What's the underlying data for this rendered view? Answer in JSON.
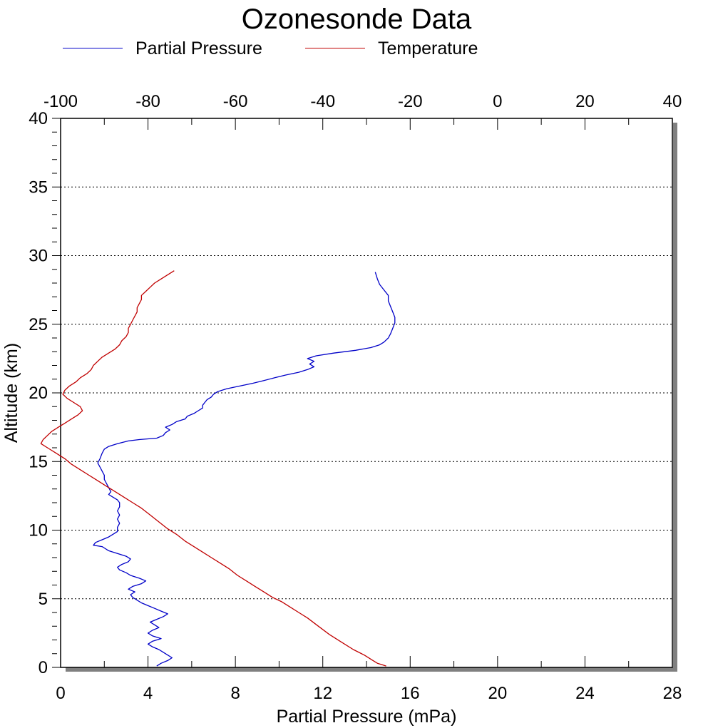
{
  "chart_data": {
    "type": "line",
    "title": "Ozonesonde Data",
    "legend": {
      "placement": "top",
      "entries": [
        {
          "label": "Partial Pressure",
          "color": "#0000c8"
        },
        {
          "label": "Temperature",
          "color": "#c00000"
        }
      ]
    },
    "ylabel": "Altitude (km)",
    "xlabel": "Partial Pressure (mPa)",
    "ylim": [
      0,
      40
    ],
    "y_ticks": [
      0,
      5,
      10,
      15,
      20,
      25,
      30,
      35,
      40
    ],
    "x_bottom": {
      "lim": [
        0,
        28
      ],
      "ticks": [
        0,
        4,
        8,
        12,
        16,
        20,
        24,
        28
      ]
    },
    "x_top": {
      "lim": [
        -100,
        40
      ],
      "ticks": [
        -100,
        -80,
        -60,
        -40,
        -20,
        0,
        20,
        40
      ]
    },
    "grid": {
      "y": true,
      "x": false,
      "style": "dotted"
    },
    "series": [
      {
        "name": "Partial Pressure",
        "axis": "bottom",
        "color": "#0000c8",
        "points": [
          [
            4.4,
            0.1
          ],
          [
            4.6,
            0.3
          ],
          [
            4.9,
            0.5
          ],
          [
            5.1,
            0.7
          ],
          [
            4.9,
            0.9
          ],
          [
            4.7,
            1.1
          ],
          [
            4.5,
            1.3
          ],
          [
            4.2,
            1.5
          ],
          [
            4.0,
            1.7
          ],
          [
            4.2,
            1.9
          ],
          [
            4.6,
            2.1
          ],
          [
            4.2,
            2.3
          ],
          [
            4.0,
            2.5
          ],
          [
            4.2,
            2.7
          ],
          [
            4.5,
            2.9
          ],
          [
            4.3,
            3.1
          ],
          [
            4.1,
            3.3
          ],
          [
            4.4,
            3.5
          ],
          [
            4.7,
            3.7
          ],
          [
            4.9,
            3.9
          ],
          [
            4.6,
            4.1
          ],
          [
            4.3,
            4.3
          ],
          [
            4.0,
            4.5
          ],
          [
            3.7,
            4.7
          ],
          [
            3.5,
            4.9
          ],
          [
            3.3,
            5.1
          ],
          [
            3.2,
            5.3
          ],
          [
            3.4,
            5.5
          ],
          [
            3.1,
            5.7
          ],
          [
            3.3,
            5.9
          ],
          [
            3.7,
            6.1
          ],
          [
            3.9,
            6.3
          ],
          [
            3.6,
            6.5
          ],
          [
            3.2,
            6.7
          ],
          [
            3.0,
            6.9
          ],
          [
            2.7,
            7.1
          ],
          [
            2.6,
            7.3
          ],
          [
            2.8,
            7.5
          ],
          [
            3.1,
            7.7
          ],
          [
            3.2,
            7.9
          ],
          [
            3.0,
            8.1
          ],
          [
            2.6,
            8.3
          ],
          [
            2.2,
            8.5
          ],
          [
            2.0,
            8.7
          ],
          [
            1.9,
            8.8
          ],
          [
            1.5,
            8.9
          ],
          [
            1.6,
            9.1
          ],
          [
            1.9,
            9.3
          ],
          [
            2.2,
            9.5
          ],
          [
            2.4,
            9.7
          ],
          [
            2.6,
            9.9
          ],
          [
            2.6,
            10.2
          ],
          [
            2.7,
            10.5
          ],
          [
            2.6,
            10.8
          ],
          [
            2.7,
            11.1
          ],
          [
            2.6,
            11.4
          ],
          [
            2.7,
            11.7
          ],
          [
            2.7,
            12.0
          ],
          [
            2.6,
            12.2
          ],
          [
            2.4,
            12.4
          ],
          [
            2.2,
            12.6
          ],
          [
            2.3,
            12.8
          ],
          [
            2.2,
            13.1
          ],
          [
            2.1,
            13.4
          ],
          [
            2.0,
            13.7
          ],
          [
            2.0,
            14.0
          ],
          [
            1.9,
            14.3
          ],
          [
            1.8,
            14.6
          ],
          [
            1.7,
            14.9
          ],
          [
            1.8,
            15.2
          ],
          [
            1.9,
            15.6
          ],
          [
            2.0,
            15.9
          ],
          [
            2.2,
            16.1
          ],
          [
            2.6,
            16.3
          ],
          [
            3.1,
            16.5
          ],
          [
            3.6,
            16.6
          ],
          [
            4.4,
            16.7
          ],
          [
            4.7,
            16.9
          ],
          [
            4.8,
            17.1
          ],
          [
            5.0,
            17.3
          ],
          [
            4.8,
            17.5
          ],
          [
            5.1,
            17.7
          ],
          [
            5.3,
            17.9
          ],
          [
            5.7,
            18.1
          ],
          [
            5.8,
            18.3
          ],
          [
            6.1,
            18.5
          ],
          [
            6.3,
            18.7
          ],
          [
            6.5,
            18.9
          ],
          [
            6.5,
            19.1
          ],
          [
            6.6,
            19.3
          ],
          [
            6.7,
            19.5
          ],
          [
            6.9,
            19.7
          ],
          [
            7.0,
            19.9
          ],
          [
            7.2,
            20.1
          ],
          [
            7.6,
            20.3
          ],
          [
            8.2,
            20.5
          ],
          [
            8.8,
            20.7
          ],
          [
            9.3,
            20.9
          ],
          [
            9.8,
            21.1
          ],
          [
            10.3,
            21.3
          ],
          [
            10.9,
            21.5
          ],
          [
            11.3,
            21.7
          ],
          [
            11.6,
            21.9
          ],
          [
            11.4,
            22.1
          ],
          [
            11.6,
            22.3
          ],
          [
            11.3,
            22.5
          ],
          [
            11.7,
            22.7
          ],
          [
            12.5,
            22.9
          ],
          [
            13.5,
            23.1
          ],
          [
            14.2,
            23.3
          ],
          [
            14.6,
            23.5
          ],
          [
            14.8,
            23.7
          ],
          [
            15.0,
            24.0
          ],
          [
            15.1,
            24.3
          ],
          [
            15.2,
            24.7
          ],
          [
            15.3,
            25.1
          ],
          [
            15.3,
            25.5
          ],
          [
            15.2,
            25.9
          ],
          [
            15.1,
            26.3
          ],
          [
            15.0,
            26.7
          ],
          [
            15.0,
            27.1
          ],
          [
            14.8,
            27.5
          ],
          [
            14.6,
            27.9
          ],
          [
            14.5,
            28.3
          ],
          [
            14.4,
            28.8
          ]
        ]
      },
      {
        "name": "Temperature",
        "axis": "top",
        "color": "#c00000",
        "points": [
          [
            -25.5,
            0.1
          ],
          [
            -26.5,
            0.2
          ],
          [
            -27.5,
            0.3
          ],
          [
            -28.5,
            0.5
          ],
          [
            -30.5,
            0.9
          ],
          [
            -33.0,
            1.3
          ],
          [
            -35.5,
            1.8
          ],
          [
            -38.5,
            2.4
          ],
          [
            -41.0,
            3.0
          ],
          [
            -43.5,
            3.6
          ],
          [
            -45.5,
            4.0
          ],
          [
            -47.5,
            4.4
          ],
          [
            -49.5,
            4.8
          ],
          [
            -51.5,
            5.1
          ],
          [
            -53.5,
            5.5
          ],
          [
            -55.5,
            5.9
          ],
          [
            -57.5,
            6.3
          ],
          [
            -59.5,
            6.7
          ],
          [
            -61.5,
            7.2
          ],
          [
            -63.5,
            7.6
          ],
          [
            -65.5,
            8.0
          ],
          [
            -67.5,
            8.4
          ],
          [
            -69.5,
            8.8
          ],
          [
            -71.5,
            9.2
          ],
          [
            -73.5,
            9.7
          ],
          [
            -75.5,
            10.1
          ],
          [
            -77.5,
            10.6
          ],
          [
            -79.5,
            11.1
          ],
          [
            -81.5,
            11.6
          ],
          [
            -83.5,
            12.0
          ],
          [
            -85.5,
            12.4
          ],
          [
            -87.5,
            12.8
          ],
          [
            -89.5,
            13.2
          ],
          [
            -91.5,
            13.6
          ],
          [
            -93.5,
            14.0
          ],
          [
            -95.5,
            14.4
          ],
          [
            -97.5,
            14.8
          ],
          [
            -99.0,
            15.2
          ],
          [
            -101.0,
            15.6
          ],
          [
            -103.0,
            16.0
          ],
          [
            -104.5,
            16.3
          ],
          [
            -104.0,
            16.6
          ],
          [
            -103.0,
            16.9
          ],
          [
            -102.0,
            17.2
          ],
          [
            -100.5,
            17.5
          ],
          [
            -99.0,
            17.8
          ],
          [
            -97.5,
            18.1
          ],
          [
            -96.0,
            18.4
          ],
          [
            -95.0,
            18.7
          ],
          [
            -95.5,
            19.0
          ],
          [
            -97.0,
            19.3
          ],
          [
            -98.5,
            19.6
          ],
          [
            -99.5,
            19.9
          ],
          [
            -99.0,
            20.2
          ],
          [
            -98.0,
            20.5
          ],
          [
            -96.5,
            20.8
          ],
          [
            -95.5,
            21.1
          ],
          [
            -94.0,
            21.4
          ],
          [
            -93.0,
            21.7
          ],
          [
            -92.5,
            22.0
          ],
          [
            -91.5,
            22.3
          ],
          [
            -90.5,
            22.6
          ],
          [
            -89.0,
            22.9
          ],
          [
            -87.5,
            23.2
          ],
          [
            -86.5,
            23.5
          ],
          [
            -86.0,
            23.8
          ],
          [
            -85.0,
            24.1
          ],
          [
            -84.5,
            24.4
          ],
          [
            -84.5,
            24.7
          ],
          [
            -84.0,
            25.0
          ],
          [
            -83.5,
            25.3
          ],
          [
            -83.0,
            25.6
          ],
          [
            -82.5,
            25.9
          ],
          [
            -82.5,
            26.2
          ],
          [
            -82.0,
            26.5
          ],
          [
            -81.5,
            26.8
          ],
          [
            -81.5,
            27.1
          ],
          [
            -80.5,
            27.4
          ],
          [
            -79.5,
            27.7
          ],
          [
            -78.5,
            28.0
          ],
          [
            -77.0,
            28.3
          ],
          [
            -75.5,
            28.6
          ],
          [
            -74.0,
            28.9
          ]
        ]
      }
    ]
  }
}
